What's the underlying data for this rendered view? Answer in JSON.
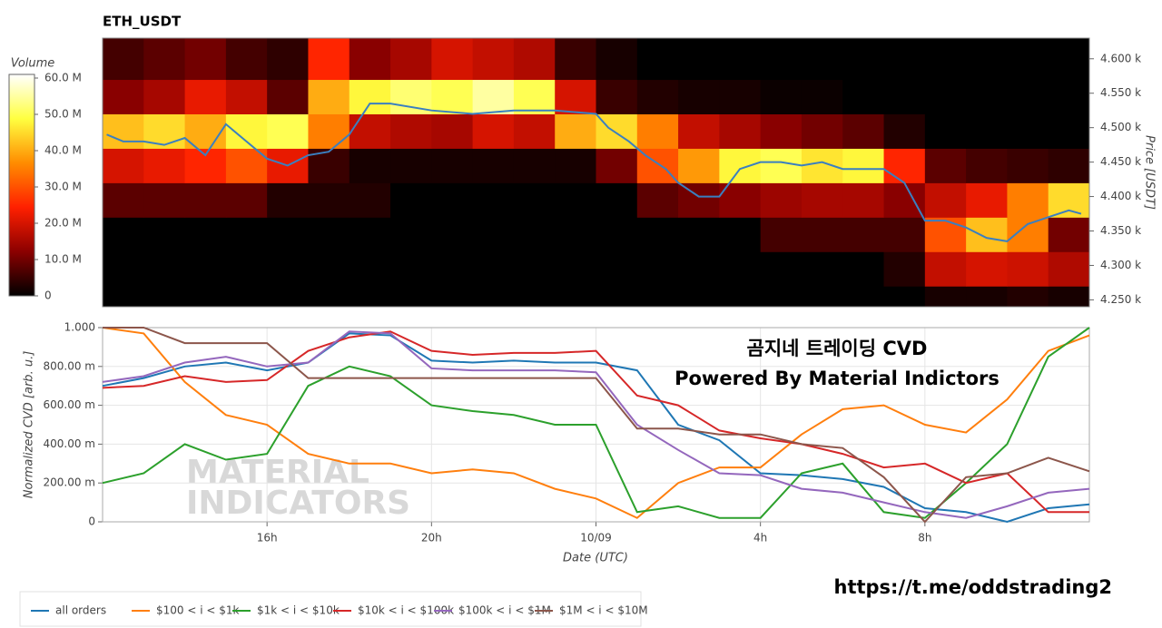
{
  "chart_data": [
    {
      "type": "heatmap",
      "title": "ETH_USDT",
      "y_label": "Price [USDT]",
      "xlim": [
        12,
        36
      ],
      "ylim": [
        4240,
        4630
      ],
      "x_bins": [
        12,
        13,
        14,
        15,
        16,
        17,
        18,
        19,
        20,
        21,
        22,
        23,
        24,
        25,
        26,
        27,
        28,
        29,
        30,
        31,
        32,
        33,
        34,
        35,
        36
      ],
      "y_bins": [
        4240,
        4270,
        4320,
        4370,
        4420,
        4470,
        4520,
        4570,
        4630
      ],
      "z": [
        [
          0,
          0,
          0,
          0,
          0,
          0,
          0,
          0,
          0,
          0,
          0,
          0,
          0,
          0,
          0,
          0,
          0,
          0,
          0,
          0,
          2,
          2,
          3,
          2
        ],
        [
          0,
          0,
          0,
          0,
          0,
          0,
          0,
          0,
          0,
          0,
          0,
          0,
          0,
          0,
          0,
          0,
          0,
          0,
          0,
          3,
          18,
          20,
          19,
          16
        ],
        [
          0,
          0,
          0,
          0,
          0,
          0,
          0,
          0,
          0,
          0,
          0,
          0,
          0,
          0,
          0,
          0,
          6,
          6,
          6,
          6,
          30,
          42,
          35,
          10
        ],
        [
          8,
          8,
          8,
          8,
          3,
          3,
          3,
          0,
          0,
          0,
          0,
          0,
          0,
          8,
          10,
          12,
          14,
          15,
          15,
          12,
          18,
          22,
          35,
          45
        ],
        [
          20,
          22,
          25,
          30,
          22,
          5,
          2,
          2,
          2,
          2,
          2,
          2,
          10,
          30,
          38,
          48,
          50,
          46,
          48,
          25,
          8,
          6,
          5,
          4
        ],
        [
          42,
          45,
          40,
          48,
          50,
          35,
          18,
          16,
          15,
          20,
          18,
          40,
          45,
          35,
          18,
          15,
          12,
          10,
          8,
          3,
          0,
          0,
          0,
          0
        ],
        [
          12,
          15,
          22,
          18,
          8,
          40,
          48,
          52,
          50,
          55,
          50,
          20,
          5,
          3,
          2,
          2,
          1,
          1,
          0,
          0,
          0,
          0,
          0,
          0
        ],
        [
          6,
          8,
          10,
          6,
          4,
          25,
          12,
          15,
          20,
          18,
          16,
          5,
          2,
          0,
          0,
          0,
          0,
          0,
          0,
          0,
          0,
          0,
          0,
          0
        ]
      ],
      "colormap": [
        "#000000",
        "#8b0000",
        "#ff2000",
        "#ff8c00",
        "#ffff40",
        "#ffffff"
      ],
      "yticks": [
        {
          "value": 4250,
          "label": "4.250 k"
        },
        {
          "value": 4300,
          "label": "4.300 k"
        },
        {
          "value": 4350,
          "label": "4.350 k"
        },
        {
          "value": 4400,
          "label": "4.400 k"
        },
        {
          "value": 4450,
          "label": "4.450 k"
        },
        {
          "value": 4500,
          "label": "4.500 k"
        },
        {
          "value": 4550,
          "label": "4.550 k"
        },
        {
          "value": 4600,
          "label": "4.600 k"
        }
      ],
      "colorbar": {
        "title": "Volume",
        "lim": [
          0,
          61
        ],
        "ticks": [
          0,
          {
            "value": 10,
            "label": "10.0 M"
          },
          {
            "value": 20,
            "label": "20.0 M"
          },
          {
            "value": 30,
            "label": "30.0 M"
          },
          {
            "value": 40,
            "label": "40.0 M"
          },
          {
            "value": 50,
            "label": "50.0 M"
          },
          {
            "value": 60,
            "label": "60.0 M"
          }
        ]
      },
      "line": {
        "color": "#3a7fc0",
        "x": [
          12.1,
          12.5,
          13,
          13.5,
          14,
          14.5,
          15,
          15.5,
          16,
          16.5,
          17,
          17.5,
          18,
          18.5,
          19,
          20,
          21,
          22,
          23,
          24,
          24.3,
          24.8,
          25.2,
          25.7,
          26,
          26.5,
          27,
          27.5,
          28,
          28.5,
          29,
          29.5,
          30,
          31,
          31.5,
          32,
          32.5,
          33,
          33.5,
          34,
          34.5,
          35,
          35.5,
          35.8
        ],
        "values": [
          4490,
          4480,
          4480,
          4475,
          4485,
          4460,
          4505,
          4480,
          4455,
          4445,
          4460,
          4465,
          4490,
          4535,
          4535,
          4525,
          4520,
          4525,
          4525,
          4520,
          4500,
          4480,
          4460,
          4440,
          4420,
          4400,
          4400,
          4440,
          4450,
          4450,
          4445,
          4450,
          4440,
          4440,
          4420,
          4365,
          4365,
          4355,
          4340,
          4335,
          4360,
          4370,
          4380,
          4375
        ]
      }
    },
    {
      "type": "line",
      "x_label": "Date (UTC)",
      "y_label": "Normalized CVD [arb. u.]",
      "xlim": [
        12,
        36
      ],
      "ylim": [
        0,
        1
      ],
      "xticks": [
        {
          "value": 16,
          "label": "16h"
        },
        {
          "value": 20,
          "label": "20h"
        },
        {
          "value": 24,
          "label": "10/09"
        },
        {
          "value": 28,
          "label": "4h"
        },
        {
          "value": 32,
          "label": "8h"
        }
      ],
      "yticks": [
        0,
        {
          "value": 0.2,
          "label": "200.00 m"
        },
        {
          "value": 0.4,
          "label": "400.00 m"
        },
        {
          "value": 0.6,
          "label": "600.00 m"
        },
        {
          "value": 0.8,
          "label": "800.00 m"
        },
        {
          "value": 1,
          "label": "1.000"
        }
      ],
      "grid": true,
      "x": [
        12,
        13,
        14,
        15,
        16,
        17,
        18,
        19,
        20,
        21,
        22,
        23,
        24,
        25,
        26,
        27,
        28,
        29,
        30,
        31,
        32,
        33,
        34,
        35,
        36
      ],
      "series": [
        {
          "name": "all orders",
          "color": "#1f77b4",
          "values": [
            0.7,
            0.74,
            0.8,
            0.82,
            0.78,
            0.82,
            0.97,
            0.96,
            0.83,
            0.82,
            0.83,
            0.82,
            0.82,
            0.78,
            0.5,
            0.42,
            0.25,
            0.24,
            0.22,
            0.18,
            0.07,
            0.05,
            0,
            0.07,
            0.09
          ]
        },
        {
          "name": "$100 < i < $1k",
          "color": "#ff7f0e",
          "values": [
            1,
            0.97,
            0.72,
            0.55,
            0.5,
            0.35,
            0.3,
            0.3,
            0.25,
            0.27,
            0.25,
            0.17,
            0.12,
            0.02,
            0.2,
            0.28,
            0.28,
            0.45,
            0.58,
            0.6,
            0.5,
            0.46,
            0.63,
            0.88,
            0.96
          ]
        },
        {
          "name": "$1k < i < $10k",
          "color": "#2ca02c",
          "values": [
            0.2,
            0.25,
            0.4,
            0.32,
            0.35,
            0.7,
            0.8,
            0.75,
            0.6,
            0.57,
            0.55,
            0.5,
            0.5,
            0.05,
            0.08,
            0.02,
            0.02,
            0.25,
            0.3,
            0.05,
            0.02,
            0.2,
            0.4,
            0.85,
            1
          ]
        },
        {
          "name": "$10k < i < $100k",
          "color": "#d62728",
          "values": [
            0.69,
            0.7,
            0.75,
            0.72,
            0.73,
            0.88,
            0.95,
            0.98,
            0.88,
            0.86,
            0.87,
            0.87,
            0.88,
            0.65,
            0.6,
            0.47,
            0.43,
            0.4,
            0.35,
            0.28,
            0.3,
            0.2,
            0.25,
            0.05,
            0.05
          ]
        },
        {
          "name": "$100k < i < $1M",
          "color": "#9467bd",
          "values": [
            0.72,
            0.75,
            0.82,
            0.85,
            0.8,
            0.82,
            0.98,
            0.97,
            0.79,
            0.78,
            0.78,
            0.78,
            0.77,
            0.5,
            0.37,
            0.25,
            0.24,
            0.17,
            0.15,
            0.1,
            0.05,
            0.02,
            0.08,
            0.15,
            0.17
          ]
        },
        {
          "name": "$1M < i < $10M",
          "color": "#8c564b",
          "values": [
            1,
            1,
            0.92,
            0.92,
            0.92,
            0.74,
            0.74,
            0.74,
            0.74,
            0.74,
            0.74,
            0.74,
            0.74,
            0.48,
            0.48,
            0.45,
            0.45,
            0.4,
            0.38,
            0.23,
            0,
            0.23,
            0.25,
            0.33,
            0.26
          ]
        }
      ],
      "annotations": [
        "곰지네 트레이딩 CVD",
        "Powered By Material Indictors"
      ],
      "watermark": [
        "MATERIAL",
        "INDICATORS"
      ]
    }
  ],
  "footer": {
    "link": "https://t.me/oddstrading2"
  }
}
